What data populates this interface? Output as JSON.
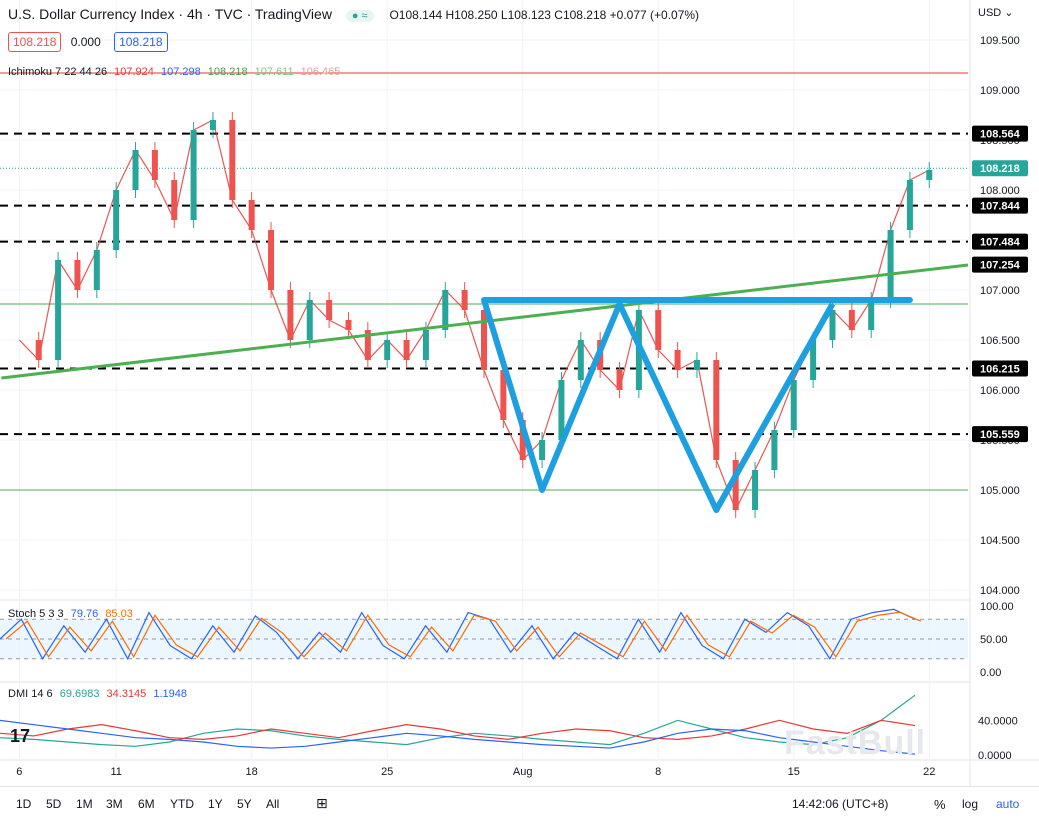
{
  "header": {
    "title": "U.S. Dollar Currency Index · 4h · TVC · TradingView",
    "ohlc": "O108.144 H108.250 L108.123 C108.218 +0.077 (+0.07%)",
    "badge": "≈",
    "price_box_left": "108.218",
    "spread": "0.000",
    "price_box_right": "108.218",
    "currency": "USD"
  },
  "indicators": {
    "ichimoku": {
      "label": "Ichimoku 7 22 44 26",
      "v1": "107.924",
      "v2": "107.298",
      "v3": "108.218",
      "v4": "107.611",
      "v5": "106.465"
    },
    "stoch": {
      "label": "Stoch 5 3 3",
      "k": "79.76",
      "d": "85.03"
    },
    "dmi": {
      "label": "DMI 14 6",
      "plus": "69.6983",
      "minus": "34.3145",
      "adx": "1.1948"
    }
  },
  "bottom_bar": {
    "ranges": [
      "1D",
      "5D",
      "1M",
      "3M",
      "6M",
      "YTD",
      "1Y",
      "5Y",
      "All"
    ],
    "time": "14:42:06 (UTC+8)",
    "percent": "%",
    "log": "log",
    "auto": "auto"
  },
  "watermark": "FastBull",
  "logo": "17",
  "colors": {
    "up": "#26a69a",
    "down": "#ef5350",
    "tenkan": "#e53935",
    "kijun": "#2962ff",
    "chikou": "#43a047",
    "pattern": "#1e9fdf",
    "trendline": "#4caf50"
  },
  "chart_data": {
    "type": "line",
    "symbol": "U.S. Dollar Currency Index",
    "timeframe": "4h",
    "x_tick_labels": [
      "6",
      "11",
      "18",
      "25",
      "Aug",
      "8",
      "15",
      "22"
    ],
    "y_tick_labels": [
      "109.500",
      "109.000",
      "108.500",
      "108.000",
      "107.500",
      "107.000",
      "106.500",
      "106.000",
      "105.500",
      "105.000",
      "104.500",
      "104.000"
    ],
    "ylim": [
      103.9,
      109.7
    ],
    "price_path": [
      {
        "t": 6,
        "v": 106.5
      },
      {
        "t": 7,
        "v": 106.3
      },
      {
        "t": 8,
        "v": 107.3
      },
      {
        "t": 9,
        "v": 107.0
      },
      {
        "t": 10,
        "v": 107.4
      },
      {
        "t": 11,
        "v": 108.0
      },
      {
        "t": 12,
        "v": 108.4
      },
      {
        "t": 13,
        "v": 108.1
      },
      {
        "t": 14,
        "v": 107.7
      },
      {
        "t": 15,
        "v": 108.6
      },
      {
        "t": 16,
        "v": 108.7
      },
      {
        "t": 17,
        "v": 107.9
      },
      {
        "t": 18,
        "v": 107.6
      },
      {
        "t": 19,
        "v": 107.0
      },
      {
        "t": 20,
        "v": 106.5
      },
      {
        "t": 21,
        "v": 106.9
      },
      {
        "t": 22,
        "v": 106.7
      },
      {
        "t": 23,
        "v": 106.6
      },
      {
        "t": 24,
        "v": 106.3
      },
      {
        "t": 25,
        "v": 106.5
      },
      {
        "t": 26,
        "v": 106.3
      },
      {
        "t": 27,
        "v": 106.6
      },
      {
        "t": 28,
        "v": 107.0
      },
      {
        "t": 29,
        "v": 106.8
      },
      {
        "t": 30,
        "v": 106.2
      },
      {
        "t": 31,
        "v": 105.7
      },
      {
        "t": 32,
        "v": 105.3
      },
      {
        "t": 33,
        "v": 105.5
      },
      {
        "t": 34,
        "v": 106.1
      },
      {
        "t": 35,
        "v": 106.5
      },
      {
        "t": 36,
        "v": 106.2
      },
      {
        "t": 37,
        "v": 106.0
      },
      {
        "t": 38,
        "v": 106.8
      },
      {
        "t": 39,
        "v": 106.4
      },
      {
        "t": 40,
        "v": 106.2
      },
      {
        "t": 41,
        "v": 106.3
      },
      {
        "t": 42,
        "v": 105.3
      },
      {
        "t": 43,
        "v": 104.8
      },
      {
        "t": 44,
        "v": 105.2
      },
      {
        "t": 45,
        "v": 105.6
      },
      {
        "t": 46,
        "v": 106.1
      },
      {
        "t": 47,
        "v": 106.5
      },
      {
        "t": 48,
        "v": 106.8
      },
      {
        "t": 49,
        "v": 106.6
      },
      {
        "t": 50,
        "v": 106.9
      },
      {
        "t": 51,
        "v": 107.6
      },
      {
        "t": 52,
        "v": 108.1
      },
      {
        "t": 53,
        "v": 108.2
      }
    ],
    "levels": [
      {
        "label": "108.564",
        "value": 108.564,
        "style": "dashed"
      },
      {
        "label": "108.218",
        "value": 108.218,
        "style": "current"
      },
      {
        "label": "107.844",
        "value": 107.844,
        "style": "dashed"
      },
      {
        "label": "107.484",
        "value": 107.484,
        "style": "dashed"
      },
      {
        "label": "107.254",
        "value": 107.254,
        "style": "trendline"
      },
      {
        "label": "106.215",
        "value": 106.215,
        "style": "dashed"
      },
      {
        "label": "105.559",
        "value": 105.559,
        "style": "dashed"
      }
    ],
    "horizontal_lines": [
      {
        "value": 109.17,
        "color": "#e53935"
      },
      {
        "value": 106.86,
        "color": "#4caf50"
      },
      {
        "value": 105.0,
        "color": "#4caf50"
      }
    ],
    "trendline": [
      {
        "t": 6,
        "v": 106.2
      },
      {
        "t": 55,
        "v": 107.25
      }
    ],
    "double_bottom_pattern": [
      {
        "t": 30,
        "v": 106.9
      },
      {
        "t": 33,
        "v": 105.0
      },
      {
        "t": 37,
        "v": 106.86
      },
      {
        "t": 42,
        "v": 104.8
      },
      {
        "t": 48,
        "v": 106.86
      }
    ],
    "neckline": [
      {
        "t": 30,
        "v": 106.9
      },
      {
        "t": 52,
        "v": 106.9
      }
    ],
    "stoch": {
      "y_tick_labels": [
        "100.00",
        "50.00",
        "0.00"
      ],
      "k": [
        50,
        80,
        20,
        70,
        30,
        80,
        20,
        90,
        40,
        20,
        70,
        30,
        85,
        60,
        20,
        60,
        30,
        90,
        40,
        20,
        70,
        30,
        90,
        80,
        30,
        70,
        20,
        60,
        40,
        20,
        80,
        30,
        90,
        40,
        20,
        80,
        60,
        90,
        70,
        20,
        80,
        90,
        95,
        80
      ]
    },
    "dmi": {
      "y_tick_labels": [
        "40.0000",
        "0.0000"
      ],
      "plus": [
        20,
        18,
        15,
        12,
        10,
        15,
        25,
        30,
        28,
        22,
        18,
        15,
        12,
        20,
        25,
        22,
        18,
        15,
        12,
        25,
        40,
        30,
        20,
        15,
        12,
        20,
        40,
        69
      ],
      "minus": [
        25,
        22,
        30,
        35,
        28,
        20,
        18,
        22,
        30,
        25,
        20,
        28,
        35,
        30,
        22,
        18,
        25,
        30,
        28,
        20,
        18,
        22,
        30,
        40,
        30,
        25,
        40,
        34
      ],
      "adx": [
        40,
        35,
        30,
        25,
        20,
        18,
        15,
        10,
        8,
        10,
        15,
        20,
        25,
        22,
        18,
        15,
        12,
        10,
        8,
        15,
        25,
        30,
        28,
        20,
        15,
        10,
        5,
        1
      ]
    }
  }
}
